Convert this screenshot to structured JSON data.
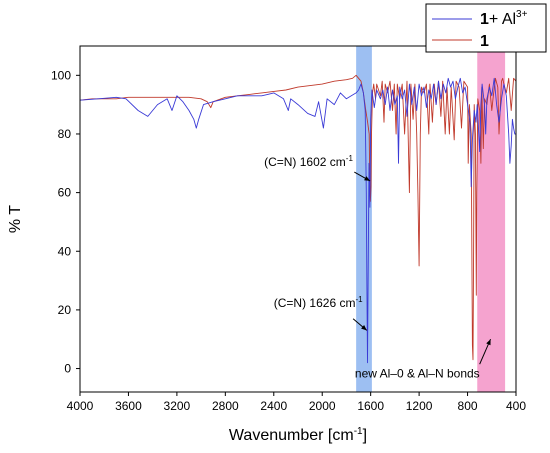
{
  "chart_data": {
    "type": "line",
    "xlabel": "Wavenumber [cm",
    "xlabel_sup": "-1",
    "xlabel_end": "]",
    "ylabel": "% T",
    "xlim": [
      4000,
      400
    ],
    "ylim": [
      -8,
      110
    ],
    "x_ticks": [
      4000,
      3600,
      3200,
      2800,
      2400,
      2000,
      1600,
      1200,
      800,
      400
    ],
    "y_ticks": [
      0,
      20,
      40,
      60,
      80,
      100
    ],
    "grid": false,
    "legend_position": "top-right",
    "series": [
      {
        "name_bold": "1",
        "name_rest": "+ Al",
        "name_sup": "3+",
        "color": "#3a3ad6",
        "points": [
          [
            4000,
            91.5
          ],
          [
            3850,
            92
          ],
          [
            3700,
            92.5
          ],
          [
            3620,
            92
          ],
          [
            3520,
            88
          ],
          [
            3440,
            86
          ],
          [
            3360,
            90
          ],
          [
            3280,
            92
          ],
          [
            3240,
            88
          ],
          [
            3200,
            93
          ],
          [
            3150,
            91
          ],
          [
            3100,
            88
          ],
          [
            3060,
            85
          ],
          [
            3040,
            82
          ],
          [
            3020,
            85
          ],
          [
            2980,
            90
          ],
          [
            2900,
            91
          ],
          [
            2800,
            92
          ],
          [
            2700,
            93
          ],
          [
            2600,
            93
          ],
          [
            2500,
            93
          ],
          [
            2450,
            93.5
          ],
          [
            2400,
            94
          ],
          [
            2320,
            92
          ],
          [
            2280,
            88
          ],
          [
            2260,
            92
          ],
          [
            2200,
            90
          ],
          [
            2120,
            87
          ],
          [
            2060,
            86
          ],
          [
            2030,
            91
          ],
          [
            1990,
            82
          ],
          [
            1960,
            92
          ],
          [
            1900,
            90
          ],
          [
            1850,
            94
          ],
          [
            1800,
            92
          ],
          [
            1760,
            93
          ],
          [
            1720,
            94
          ],
          [
            1700,
            95
          ],
          [
            1680,
            97
          ],
          [
            1660,
            94
          ],
          [
            1645,
            88
          ],
          [
            1636,
            60
          ],
          [
            1631,
            28
          ],
          [
            1626,
            2
          ],
          [
            1621,
            30
          ],
          [
            1614,
            70
          ],
          [
            1606,
            55
          ],
          [
            1600,
            85
          ],
          [
            1590,
            95
          ],
          [
            1570,
            89
          ],
          [
            1550,
            95
          ],
          [
            1520,
            92
          ],
          [
            1500,
            95
          ],
          [
            1480,
            90
          ],
          [
            1460,
            96
          ],
          [
            1440,
            88
          ],
          [
            1420,
            95
          ],
          [
            1400,
            90
          ],
          [
            1380,
            93
          ],
          [
            1370,
            70
          ],
          [
            1360,
            96
          ],
          [
            1340,
            92
          ],
          [
            1320,
            95
          ],
          [
            1300,
            86
          ],
          [
            1280,
            97
          ],
          [
            1260,
            90
          ],
          [
            1240,
            96
          ],
          [
            1220,
            88
          ],
          [
            1200,
            97
          ],
          [
            1180,
            93
          ],
          [
            1160,
            96
          ],
          [
            1140,
            89
          ],
          [
            1120,
            95
          ],
          [
            1100,
            92
          ],
          [
            1080,
            97
          ],
          [
            1060,
            90
          ],
          [
            1040,
            98
          ],
          [
            1020,
            92
          ],
          [
            1000,
            97
          ],
          [
            980,
            94
          ],
          [
            960,
            99
          ],
          [
            940,
            96
          ],
          [
            920,
            98
          ],
          [
            900,
            92
          ],
          [
            880,
            96
          ],
          [
            860,
            99
          ],
          [
            840,
            94
          ],
          [
            820,
            96
          ],
          [
            800,
            90
          ],
          [
            780,
            84
          ],
          [
            770,
            62
          ],
          [
            760,
            78
          ],
          [
            745,
            88
          ],
          [
            730,
            84
          ],
          [
            720,
            90
          ],
          [
            700,
            74
          ],
          [
            690,
            90
          ],
          [
            680,
            97
          ],
          [
            660,
            90
          ],
          [
            650,
            80
          ],
          [
            640,
            92
          ],
          [
            620,
            96
          ],
          [
            600,
            93
          ],
          [
            580,
            99
          ],
          [
            560,
            90
          ],
          [
            540,
            84
          ],
          [
            520,
            92
          ],
          [
            500,
            97
          ],
          [
            480,
            93
          ],
          [
            460,
            80
          ],
          [
            450,
            70
          ],
          [
            440,
            76
          ],
          [
            430,
            85
          ],
          [
            420,
            82
          ],
          [
            410,
            80
          ],
          [
            400,
            80
          ]
        ]
      },
      {
        "name_bold": "1",
        "name_rest": "",
        "name_sup": "",
        "color": "#c0392b",
        "points": [
          [
            4000,
            91.5
          ],
          [
            3900,
            92
          ],
          [
            3800,
            92
          ],
          [
            3700,
            92
          ],
          [
            3600,
            92.5
          ],
          [
            3500,
            92.5
          ],
          [
            3400,
            92.5
          ],
          [
            3300,
            92.5
          ],
          [
            3200,
            92.5
          ],
          [
            3100,
            92.5
          ],
          [
            3000,
            92
          ],
          [
            2950,
            91
          ],
          [
            2920,
            89
          ],
          [
            2900,
            91
          ],
          [
            2800,
            92.5
          ],
          [
            2700,
            93
          ],
          [
            2600,
            93.5
          ],
          [
            2500,
            94
          ],
          [
            2400,
            94.5
          ],
          [
            2300,
            95
          ],
          [
            2200,
            96
          ],
          [
            2100,
            96.5
          ],
          [
            2000,
            97
          ],
          [
            1900,
            98
          ],
          [
            1800,
            98.5
          ],
          [
            1750,
            99
          ],
          [
            1720,
            100
          ],
          [
            1700,
            99
          ],
          [
            1680,
            98
          ],
          [
            1660,
            94
          ],
          [
            1640,
            88
          ],
          [
            1625,
            84
          ],
          [
            1612,
            80
          ],
          [
            1608,
            65
          ],
          [
            1602,
            57
          ],
          [
            1597,
            62
          ],
          [
            1593,
            80
          ],
          [
            1585,
            94
          ],
          [
            1575,
            97
          ],
          [
            1560,
            92
          ],
          [
            1550,
            97
          ],
          [
            1520,
            93
          ],
          [
            1505,
            98
          ],
          [
            1490,
            84
          ],
          [
            1480,
            97
          ],
          [
            1460,
            94
          ],
          [
            1440,
            98
          ],
          [
            1420,
            88
          ],
          [
            1405,
            97
          ],
          [
            1390,
            80
          ],
          [
            1380,
            97
          ],
          [
            1360,
            92
          ],
          [
            1340,
            97
          ],
          [
            1320,
            80
          ],
          [
            1300,
            98
          ],
          [
            1280,
            60
          ],
          [
            1268,
            97
          ],
          [
            1250,
            85
          ],
          [
            1235,
            97
          ],
          [
            1220,
            80
          ],
          [
            1210,
            60
          ],
          [
            1200,
            35
          ],
          [
            1190,
            80
          ],
          [
            1180,
            96
          ],
          [
            1160,
            94
          ],
          [
            1140,
            97
          ],
          [
            1120,
            80
          ],
          [
            1110,
            97
          ],
          [
            1090,
            84
          ],
          [
            1075,
            97
          ],
          [
            1060,
            90
          ],
          [
            1040,
            98
          ],
          [
            1020,
            86
          ],
          [
            1005,
            98
          ],
          [
            985,
            80
          ],
          [
            970,
            96
          ],
          [
            950,
            80
          ],
          [
            935,
            96
          ],
          [
            910,
            78
          ],
          [
            895,
            98
          ],
          [
            870,
            96
          ],
          [
            850,
            82
          ],
          [
            830,
            98
          ],
          [
            800,
            96
          ],
          [
            795,
            70
          ],
          [
            785,
            90
          ],
          [
            770,
            80
          ],
          [
            760,
            8
          ],
          [
            755,
            3
          ],
          [
            750,
            40
          ],
          [
            745,
            90
          ],
          [
            735,
            80
          ],
          [
            728,
            25
          ],
          [
            724,
            60
          ],
          [
            715,
            92
          ],
          [
            700,
            88
          ],
          [
            690,
            70
          ],
          [
            682,
            96
          ],
          [
            670,
            75
          ],
          [
            660,
            92
          ],
          [
            640,
            90
          ],
          [
            620,
            97
          ],
          [
            600,
            88
          ],
          [
            590,
            92
          ],
          [
            570,
            99
          ],
          [
            550,
            96
          ],
          [
            540,
            80
          ],
          [
            520,
            98
          ],
          [
            510,
            99
          ],
          [
            500,
            97
          ],
          [
            480,
            94
          ],
          [
            460,
            99
          ],
          [
            440,
            88
          ],
          [
            420,
            99
          ],
          [
            400,
            98
          ]
        ]
      }
    ],
    "bands": [
      {
        "from": 1720,
        "to": 1590,
        "color": "#9dbff2"
      },
      {
        "from": 720,
        "to": 490,
        "color": "#f5a3cf"
      }
    ],
    "annotations": [
      {
        "text": "(C=N) 1602 cm",
        "sup": "-1",
        "text_x": 2480,
        "text_y": 69,
        "arrow_from": [
          1735,
          67
        ],
        "arrow_to": [
          1605,
          64
        ]
      },
      {
        "text": "(C=N) 1626 cm",
        "sup": "-1",
        "text_x": 2400,
        "text_y": 21,
        "arrow_from": [
          1745,
          17
        ],
        "arrow_to": [
          1632,
          13
        ]
      },
      {
        "text": "new Al–0 & Al–N bonds",
        "sup": "",
        "text_x": 1730,
        "text_y": -3,
        "arrow_from": [
          700,
          1.5
        ],
        "arrow_to": [
          610,
          10
        ]
      }
    ]
  }
}
